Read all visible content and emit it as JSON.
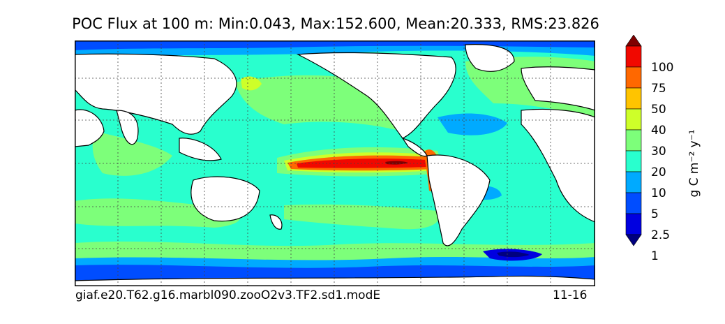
{
  "title": "POC Flux at 100 m: Min:0.043, Max:152.600, Mean:20.333, RMS:23.826",
  "caption_left": "giaf.e20.T62.g16.marbl090.zooO2v3.TF2.sd1.modE",
  "caption_right": "11-16",
  "colorbar": {
    "ticks": [
      "1",
      "2.5",
      "5",
      "10",
      "20",
      "30",
      "40",
      "50",
      "75",
      "100"
    ],
    "unit_label": "g C m⁻² y⁻¹",
    "colors": [
      "#00007f",
      "#0000e0",
      "#004dff",
      "#00aaff",
      "#29ffce",
      "#7dff7a",
      "#ceff29",
      "#ffc400",
      "#ff6800",
      "#f10800",
      "#7f0000"
    ]
  },
  "map_colors": {
    "land": "#ffffff",
    "coast": "#000000",
    "grid": "#444444"
  }
}
